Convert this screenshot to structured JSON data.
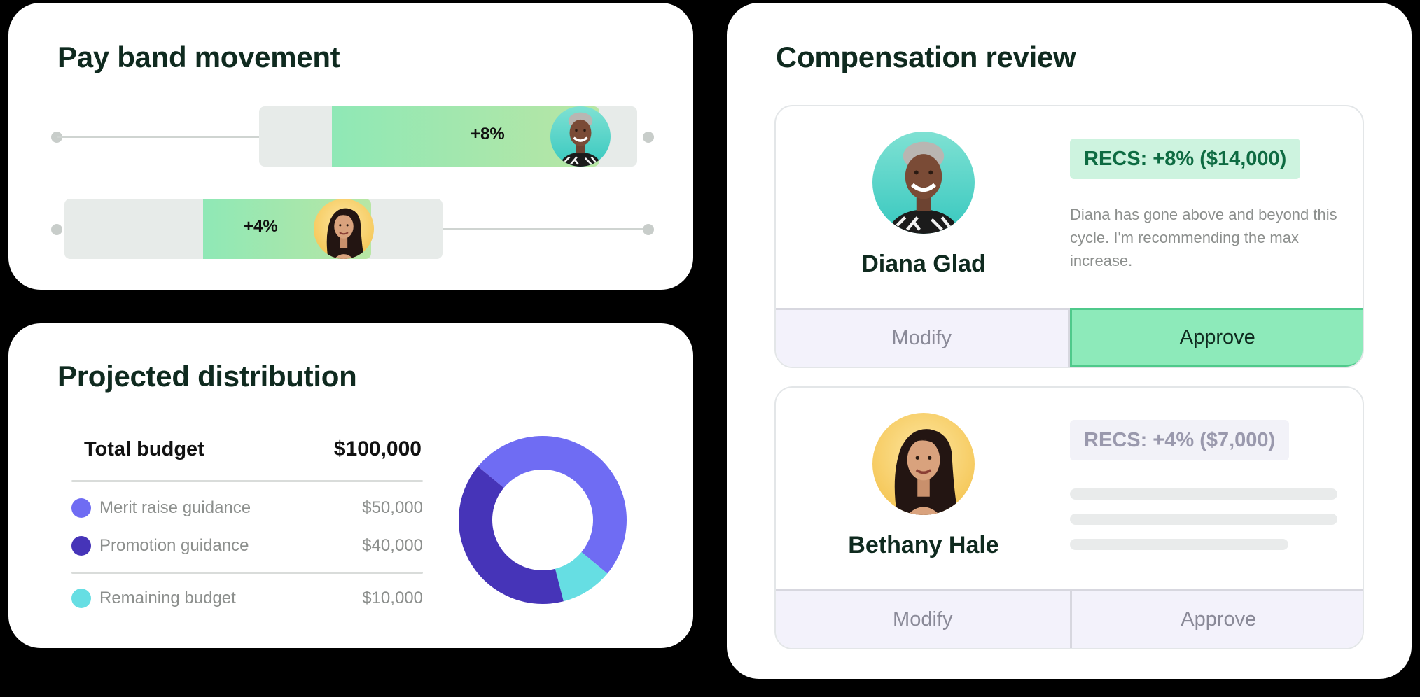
{
  "pay_band": {
    "title": "Pay band movement",
    "rows": [
      {
        "change_label": "+8%",
        "avatar": "diana-avatar"
      },
      {
        "change_label": "+4%",
        "avatar": "bethany-avatar"
      }
    ]
  },
  "distribution": {
    "title": "Projected distribution",
    "total_label": "Total budget",
    "total_value": "$100,000",
    "items": [
      {
        "label": "Merit raise guidance",
        "value": "$50,000",
        "color": "#6f6cf3"
      },
      {
        "label": "Promotion guidance",
        "value": "$40,000",
        "color": "#4634b8"
      },
      {
        "label": "Remaining budget",
        "value": "$10,000",
        "color": "#66dee3"
      }
    ]
  },
  "chart_data": {
    "type": "pie",
    "categories": [
      "Merit raise guidance",
      "Promotion guidance",
      "Remaining budget"
    ],
    "values": [
      50000,
      40000,
      10000
    ],
    "colors": [
      "#6f6cf3",
      "#4634b8",
      "#66dee3"
    ]
  },
  "compensation": {
    "title": "Compensation review",
    "employees": [
      {
        "name": "Diana Glad",
        "rec": "RECS:  +8% ($14,000)",
        "note": "Diana has gone above and beyond this cycle. I'm recommending the max increase.",
        "modify_label": "Modify",
        "approve_label": "Approve",
        "approve_state": "active"
      },
      {
        "name": "Bethany Hale",
        "rec": "RECS:  +4% ($7,000)",
        "note": "",
        "modify_label": "Modify",
        "approve_label": "Approve",
        "approve_state": "inactive"
      }
    ]
  }
}
